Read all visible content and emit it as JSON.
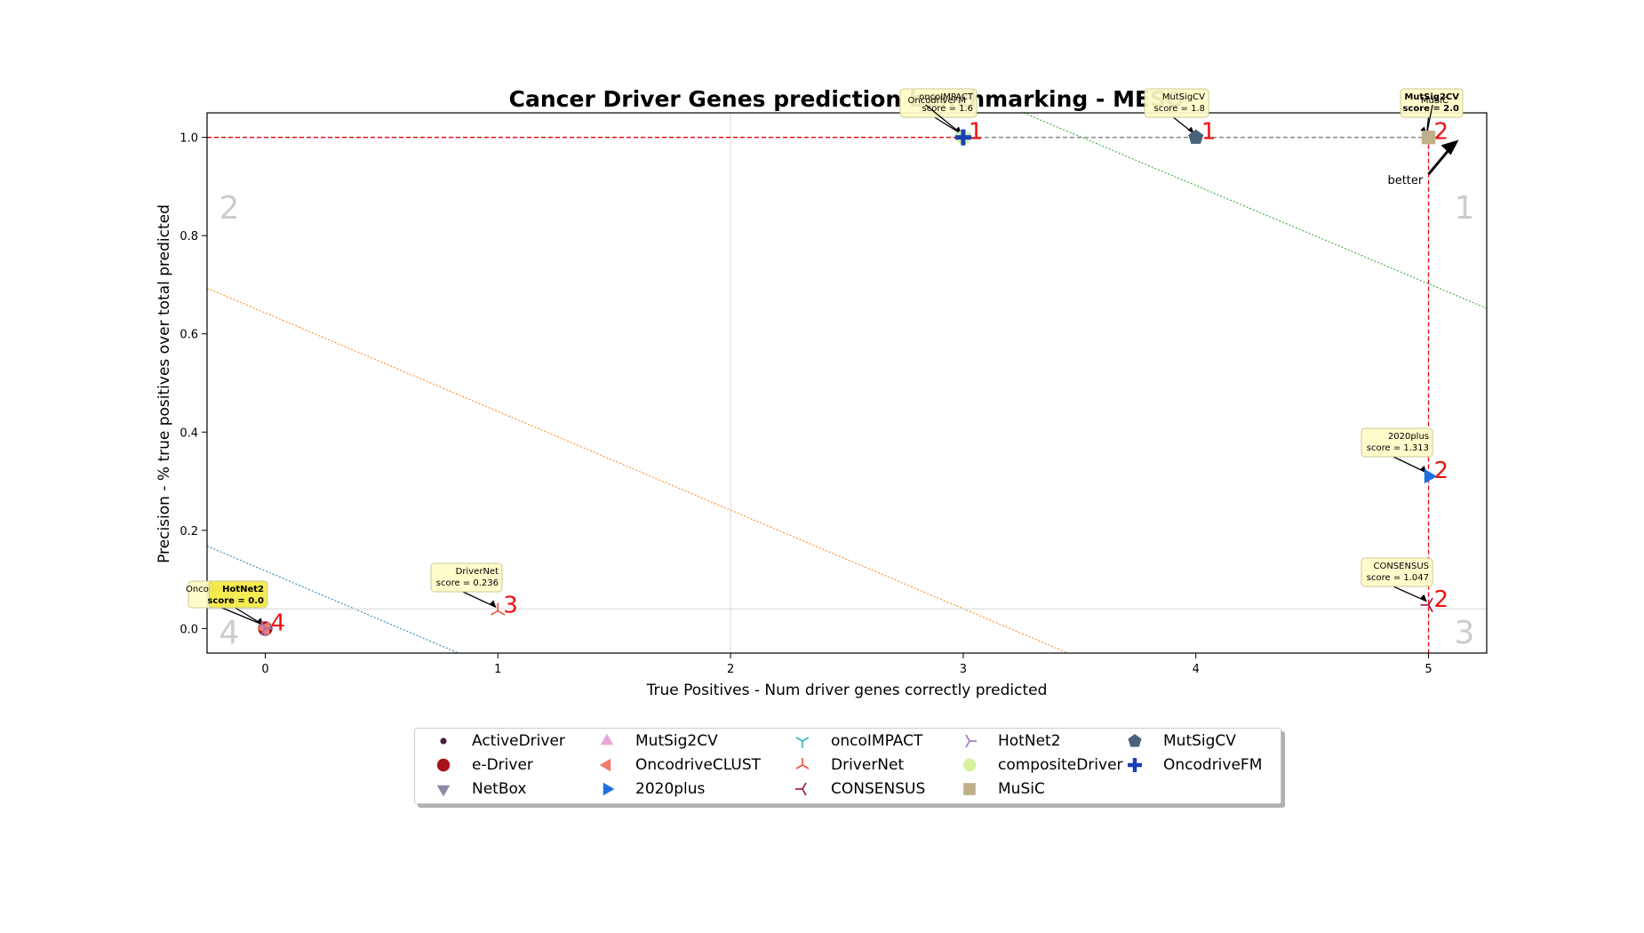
{
  "chart_data": {
    "type": "scatter",
    "title": "Cancer Driver Genes prediction benchmarking - MESO",
    "xlabel": "True Positives - Num driver genes correctly predicted",
    "ylabel": "Precision - % true positives over total predicted",
    "xlim": [
      -0.25,
      5.25
    ],
    "ylim": [
      -0.05,
      1.05
    ],
    "xticks": [
      "0",
      "1",
      "2",
      "3",
      "4",
      "5"
    ],
    "yticks": [
      "0.0",
      "0.2",
      "0.4",
      "0.6",
      "0.8",
      "1.0"
    ],
    "quadrant_labels": [
      "1",
      "2",
      "3",
      "4"
    ],
    "better_label": "better",
    "median_x": 2,
    "median_y": 0.04,
    "pareto_x": 5,
    "pareto_y": 1.0,
    "diagonals": [
      {
        "color": "#1f77b4",
        "x1": -0.25,
        "y1": 0.168,
        "x2": 0.83,
        "y2": -0.05
      },
      {
        "color": "#ff7f0e",
        "x1": -0.25,
        "y1": 0.693,
        "x2": 3.45,
        "y2": -0.05
      },
      {
        "color": "#2ca02c",
        "x1": 3.26,
        "y1": 1.05,
        "x2": 5.25,
        "y2": 0.652
      }
    ],
    "series": [
      {
        "name": "ActiveDriver",
        "marker": "dot",
        "color": "#4a2040",
        "x": 0,
        "y": 0.0
      },
      {
        "name": "e-Driver",
        "marker": "circle",
        "color": "#a8141a",
        "x": 0,
        "y": 0.0
      },
      {
        "name": "NetBox",
        "marker": "triangle-down",
        "color": "#8a8aa6",
        "x": 0,
        "y": 0.0
      },
      {
        "name": "MutSig2CV",
        "marker": "triangle-up",
        "color": "#e7a7d6",
        "x": 5,
        "y": 1.0
      },
      {
        "name": "OncodriveCLUST",
        "marker": "triangle-left",
        "color": "#f07b6b",
        "x": 0,
        "y": 0.0
      },
      {
        "name": "2020plus",
        "marker": "triangle-right",
        "color": "#1f6fe0",
        "x": 5,
        "y": 0.31
      },
      {
        "name": "oncoIMPACT",
        "marker": "tri-down",
        "color": "#33b3b3",
        "x": 3,
        "y": 1.0
      },
      {
        "name": "DriverNet",
        "marker": "tri-up",
        "color": "#e8533a",
        "x": 1,
        "y": 0.036
      },
      {
        "name": "CONSENSUS",
        "marker": "tri-left",
        "color": "#9c1538",
        "x": 5,
        "y": 0.048
      },
      {
        "name": "HotNet2",
        "marker": "tri-right",
        "color": "#a070c0",
        "x": 0,
        "y": 0.0
      },
      {
        "name": "compositeDriver",
        "marker": "circle",
        "color": "#d8f0a0",
        "x": 3,
        "y": 1.0
      },
      {
        "name": "MuSiC",
        "marker": "square",
        "color": "#c0b08a",
        "x": 5,
        "y": 1.0
      },
      {
        "name": "MutSigCV",
        "marker": "pentagon",
        "color": "#4a6378",
        "x": 4,
        "y": 1.0
      },
      {
        "name": "OncodriveFM",
        "marker": "plus",
        "color": "#1a3fb8",
        "x": 3,
        "y": 1.0
      }
    ],
    "rank_labels": [
      {
        "text": "1",
        "x": 3,
        "y": 1.0
      },
      {
        "text": "1",
        "x": 4,
        "y": 1.0
      },
      {
        "text": "2",
        "x": 5,
        "y": 1.0
      },
      {
        "text": "2",
        "x": 5,
        "y": 0.31
      },
      {
        "text": "2",
        "x": 5,
        "y": 0.048
      },
      {
        "text": "3",
        "x": 1,
        "y": 0.036
      },
      {
        "text": "4",
        "x": 0,
        "y": 0.0
      }
    ],
    "annotations": [
      {
        "name": "MutSig2CV",
        "score": "score = 2.0",
        "x": 5,
        "y": 1.0,
        "bx": 1576,
        "by": 100,
        "bw": 70,
        "bh": 32,
        "fill": "#fffcc8"
      },
      {
        "name": "MuSiC",
        "score": "",
        "x": 5,
        "y": 1.0,
        "bx": 1594,
        "by": 104,
        "bw": 40,
        "bh": 14,
        "fill": "none"
      },
      {
        "name": "MutSigCV",
        "score": "score = 1.8",
        "x": 4,
        "y": 1.0,
        "bx": 1288,
        "by": 100,
        "bw": 72,
        "bh": 32,
        "fill": "#fffcc8"
      },
      {
        "name": "oncoIMPACT",
        "score": "score = 1.6",
        "x": 3,
        "y": 1.0,
        "bx": 1013,
        "by": 100,
        "bw": 86,
        "bh": 32,
        "fill": "#fffcc8"
      },
      {
        "name": "OncodriveFM",
        "score": "",
        "x": 3,
        "y": 1.0,
        "bx": 1001,
        "by": 104,
        "bw": 90,
        "bh": 14,
        "fill": "none"
      },
      {
        "name": "2020plus",
        "score": "score = 1.313",
        "x": 5,
        "y": 0.31,
        "bx": 1532,
        "by": 482,
        "bw": 80,
        "bh": 32,
        "fill": "#fffcc8"
      },
      {
        "name": "CONSENSUS",
        "score": "score = 1.047",
        "x": 5,
        "y": 0.048,
        "bx": 1532,
        "by": 628,
        "bw": 80,
        "bh": 32,
        "fill": "#fffcc8"
      },
      {
        "name": "DriverNet",
        "score": "score = 0.236",
        "x": 1,
        "y": 0.036,
        "bx": 485,
        "by": 634,
        "bw": 80,
        "bh": 32,
        "fill": "#fffcc8"
      },
      {
        "name": "OncodriveCLUST",
        "score": "",
        "x": 0,
        "y": 0.0,
        "bx": 212,
        "by": 654,
        "bw": 84,
        "bh": 30,
        "fill": "#fffcc8"
      },
      {
        "name": "HotNet2",
        "score": "score = 0.0",
        "x": 0,
        "y": 0.0,
        "bx": 235,
        "by": 654,
        "bw": 66,
        "bh": 30,
        "fill": "#f5ea48"
      }
    ]
  }
}
